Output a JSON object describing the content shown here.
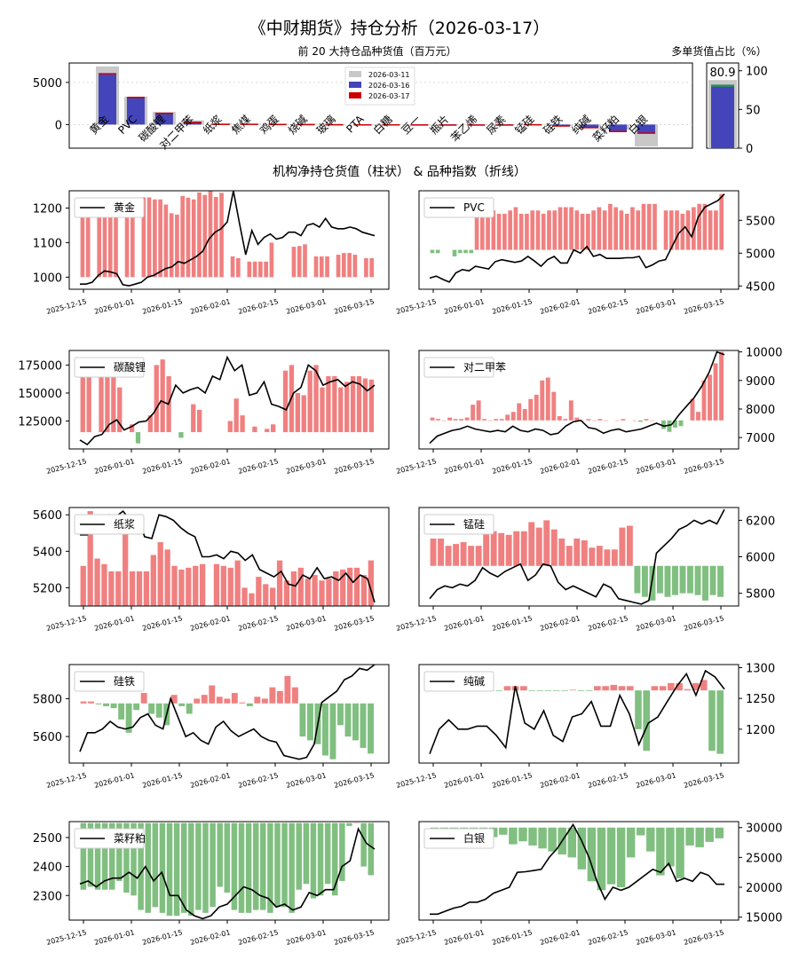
{
  "colors": {
    "gray": "#c8c8c8",
    "blue": "#4444bb",
    "red": "#cc0000",
    "pos": "#f08080",
    "neg": "#80bf80",
    "line": "#000000",
    "green_line": "#2e8b57"
  },
  "header": {
    "title": "《中财期货》持仓分析（2026-03-17）",
    "top_chart_label": "前 20 大持仓品种货值（百万元）",
    "ratio_label": "多单货值占比（%）",
    "section_label": "机构净持仓货值（柱状） & 品种指数（折线）"
  },
  "chart_data": [
    {
      "id": "top-bar",
      "type": "bar",
      "title": "前 20 大持仓品种货值（百万元）",
      "categories": [
        "黄金",
        "PVC",
        "碳酸锂",
        "对二甲苯",
        "纸浆",
        "焦煤",
        "鸡蛋",
        "烧碱",
        "玻璃",
        "PTA",
        "白糖",
        "豆一",
        "瓶片",
        "苯乙烯",
        "尿素",
        "锰硅",
        "硅铁",
        "纯碱",
        "菜籽粕",
        "白银"
      ],
      "series": [
        {
          "name": "2026-03-11",
          "values": [
            6900,
            3300,
            1500,
            500,
            120,
            100,
            80,
            80,
            60,
            50,
            40,
            30,
            30,
            20,
            20,
            -60,
            -150,
            -300,
            -600,
            -2600
          ]
        },
        {
          "name": "2026-03-16",
          "values": [
            6000,
            3200,
            1400,
            350,
            100,
            100,
            80,
            70,
            50,
            40,
            40,
            30,
            20,
            20,
            20,
            -100,
            -200,
            -400,
            -800,
            -1000
          ]
        },
        {
          "name": "2026-03-17",
          "values": [
            6100,
            3300,
            1400,
            300,
            100,
            100,
            80,
            70,
            50,
            40,
            40,
            30,
            20,
            20,
            20,
            -100,
            -250,
            -450,
            -900,
            -1100
          ]
        }
      ],
      "y_ticks": [
        "0",
        "5000"
      ],
      "ylim": [
        -2800,
        7300
      ]
    },
    {
      "id": "ratio-bar",
      "type": "bar",
      "title": "多单货值占比（%）",
      "series": [
        {
          "name": "2026-03-11",
          "value": 88
        },
        {
          "name": "2026-03-16",
          "value": 80.5
        },
        {
          "name": "2026-03-17",
          "value": 80.9
        }
      ],
      "label": "80.9",
      "y_ticks": [
        "0",
        "50",
        "100"
      ],
      "ylim": [
        0,
        110
      ]
    }
  ],
  "x_date_ticks": [
    "2025-12-15",
    "2026-01-01",
    "2026-01-15",
    "2026-02-01",
    "2026-02-15",
    "2026-03-01",
    "2026-03-15"
  ],
  "panels": [
    {
      "name": "黄金",
      "ylim": [
        965,
        1250
      ],
      "y_ticks": [
        1000,
        1100,
        1200
      ],
      "y_tick_labels": [
        "1000",
        "1100",
        "1200"
      ],
      "bars": [
        1213,
        1213,
        0,
        1213,
        1213,
        1205,
        1195,
        0,
        1180,
        1180,
        0,
        1231,
        1231,
        1225,
        1225,
        1210,
        1185,
        1181,
        1235,
        1230,
        1225,
        1245,
        1238,
        1250,
        1232,
        1244,
        0,
        1060,
        1055,
        0,
        1045,
        1045,
        1045,
        1045,
        1100,
        0,
        0,
        0,
        1088,
        1090,
        1095,
        0,
        1060,
        1060,
        1060,
        0,
        1065,
        1070,
        1070,
        1065,
        0,
        1055,
        1055
      ],
      "base": 1000,
      "line": [
        980,
        980,
        985,
        1005,
        1018,
        1015,
        1010,
        978,
        975,
        980,
        985,
        1000,
        1005,
        1015,
        1025,
        1030,
        1045,
        1040,
        1050,
        1060,
        1075,
        1110,
        1130,
        1140,
        1160,
        1250,
        1155,
        1065,
        1135,
        1095,
        1115,
        1125,
        1110,
        1115,
        1130,
        1130,
        1120,
        1150,
        1155,
        1145,
        1170,
        1145,
        1140,
        1140,
        1145,
        1140,
        1130,
        1125,
        1120
      ]
    },
    {
      "name": "PVC",
      "ylim": [
        4450,
        5950
      ],
      "y_ticks": [
        4500,
        5000,
        5500
      ],
      "y_tick_labels": [
        "4500",
        "5000",
        "5500"
      ],
      "bars": [
        5000,
        5000,
        0,
        0,
        4950,
        5000,
        5000,
        5000,
        5600,
        5600,
        5650,
        5650,
        5600,
        5600,
        5650,
        5700,
        5600,
        5600,
        5650,
        5650,
        5600,
        5650,
        5650,
        5700,
        5700,
        5700,
        5650,
        5600,
        5600,
        5650,
        5700,
        5650,
        5750,
        5700,
        5650,
        5600,
        5700,
        5650,
        5750,
        5750,
        5750,
        0,
        5650,
        5650,
        5650,
        5600,
        5650,
        5700,
        5750,
        5750,
        5650,
        5650,
        5900
      ],
      "base": 5050,
      "line": [
        4620,
        4650,
        4600,
        4560,
        4700,
        4750,
        4730,
        4800,
        4780,
        4760,
        4870,
        4900,
        4880,
        4860,
        4880,
        4950,
        4880,
        4800,
        4900,
        4950,
        4850,
        4850,
        5050,
        5000,
        5100,
        4950,
        4980,
        4920,
        4920,
        4920,
        4930,
        4930,
        4950,
        4780,
        4820,
        4880,
        4900,
        5100,
        5300,
        5400,
        5250,
        5550,
        5700,
        5750,
        5800,
        5900
      ]
    },
    {
      "name": "碳酸锂",
      "ylim": [
        100000,
        188000
      ],
      "y_ticks": [
        125000,
        150000,
        175000
      ],
      "y_tick_labels": [
        "125000",
        "150000",
        "175000"
      ],
      "bars": [
        170000,
        175000,
        0,
        178000,
        181000,
        165000,
        155000,
        0,
        122000,
        105000,
        0,
        130000,
        175000,
        180000,
        165000,
        0,
        110000,
        0,
        140000,
        135000,
        0,
        0,
        0,
        0,
        125000,
        145000,
        130000,
        0,
        120000,
        0,
        118000,
        122000,
        0,
        170000,
        175000,
        150000,
        148000,
        170000,
        175000,
        155000,
        165000,
        165000,
        155000,
        160000,
        165000,
        165000,
        163000,
        162000
      ],
      "base": 115000,
      "line": [
        108000,
        104000,
        111000,
        113000,
        122000,
        126000,
        117000,
        120000,
        124000,
        125000,
        132000,
        143000,
        140000,
        157000,
        150000,
        153000,
        155000,
        150000,
        165000,
        162000,
        182000,
        170000,
        175000,
        148000,
        150000,
        160000,
        140000,
        138000,
        135000,
        150000,
        155000,
        175000,
        170000,
        157000,
        160000,
        162000,
        156000,
        160000,
        158000,
        152000,
        157000
      ]
    },
    {
      "name": "对二甲苯",
      "ylim": [
        6600,
        10050
      ],
      "y_ticks": [
        7000,
        8000,
        9000,
        10000
      ],
      "y_tick_labels": [
        "7000",
        "8000",
        "9000",
        "10000"
      ],
      "bars": [
        7700,
        7650,
        7600,
        7700,
        7650,
        7650,
        7700,
        8150,
        8300,
        7650,
        7600,
        7650,
        7650,
        7800,
        7900,
        8200,
        8000,
        8350,
        8500,
        9000,
        9100,
        8600,
        7750,
        7650,
        8300,
        7700,
        7600,
        7650,
        7600,
        7650,
        7600,
        0,
        7600,
        7650,
        0,
        7600,
        7550,
        7650,
        7600,
        0,
        7300,
        7200,
        7350,
        7400,
        0,
        8350,
        7900,
        9000,
        9200,
        9600,
        10000
      ],
      "base": 7600,
      "line": [
        6800,
        7050,
        7150,
        7250,
        7300,
        7400,
        7300,
        7250,
        7200,
        7250,
        7200,
        7400,
        7250,
        7200,
        7300,
        7250,
        7100,
        7150,
        7400,
        7550,
        7600,
        7350,
        7300,
        7150,
        7250,
        7300,
        7200,
        7250,
        7300,
        7400,
        7500,
        7400,
        7450,
        7800,
        8100,
        8400,
        8800,
        9300,
        10000,
        9900
      ]
    },
    {
      "name": "纸浆",
      "ylim": [
        5100,
        5640
      ],
      "y_ticks": [
        5200,
        5400,
        5600
      ],
      "y_tick_labels": [
        "5200",
        "5400",
        "5600"
      ],
      "bars": [
        5320,
        5620,
        5360,
        5330,
        5290,
        5290,
        5560,
        5290,
        5290,
        5290,
        5380,
        5450,
        5410,
        5320,
        5300,
        5310,
        5320,
        5330,
        0,
        5330,
        5320,
        5310,
        5350,
        5200,
        5170,
        5260,
        5220,
        5200,
        5350,
        5240,
        5290,
        5310,
        5250,
        5270,
        5240,
        5250,
        5290,
        5300,
        5310,
        5310,
        5270,
        5350
      ],
      "base": 5100,
      "line": [
        5490,
        5490,
        5520,
        5560,
        5600,
        5590,
        5620,
        5570,
        5590,
        5480,
        5470,
        5600,
        5590,
        5570,
        5530,
        5500,
        5480,
        5370,
        5370,
        5380,
        5360,
        5400,
        5390,
        5350,
        5380,
        5300,
        5280,
        5260,
        5290,
        5220,
        5210,
        5270,
        5250,
        5310,
        5250,
        5260,
        5240,
        5280,
        5230,
        5270,
        5250,
        5120
      ]
    },
    {
      "name": "锰硅",
      "ylim": [
        5730,
        6270
      ],
      "y_ticks": [
        5800,
        6000,
        6200
      ],
      "y_tick_labels": [
        "5800",
        "6000",
        "6200"
      ],
      "bars": [
        6100,
        6100,
        6060,
        6070,
        6080,
        6060,
        6060,
        6140,
        6140,
        6130,
        6120,
        6140,
        6140,
        6190,
        6160,
        6200,
        6150,
        6100,
        6060,
        6100,
        6090,
        6050,
        6060,
        6040,
        6040,
        6160,
        6170,
        5800,
        5780,
        5760,
        5800,
        5780,
        5790,
        5800,
        5800,
        5790,
        5760,
        5790,
        5780
      ],
      "base": 5950,
      "line": [
        5770,
        5820,
        5840,
        5830,
        5850,
        5840,
        5870,
        5940,
        5910,
        5890,
        5920,
        5940,
        5960,
        5870,
        5900,
        5960,
        5950,
        5860,
        5820,
        5840,
        5820,
        5800,
        5780,
        5850,
        5830,
        5770,
        5760,
        5750,
        5740,
        5760,
        6020,
        6060,
        6100,
        6150,
        6170,
        6200,
        6180,
        6200,
        6180,
        6260
      ]
    },
    {
      "name": "硅铁",
      "ylim": [
        5460,
        5980
      ],
      "y_ticks": [
        5600,
        5800
      ],
      "y_tick_labels": [
        "5600",
        "5800"
      ],
      "bars": [
        5785,
        5785,
        5770,
        5760,
        5750,
        5690,
        5620,
        5740,
        5830,
        5720,
        5700,
        5660,
        5820,
        5760,
        5720,
        5800,
        5820,
        5870,
        5810,
        5800,
        5830,
        5780,
        5760,
        5810,
        5800,
        5860,
        5840,
        5920,
        5860,
        5600,
        5580,
        5560,
        5500,
        5480,
        5660,
        5600,
        5580,
        5540,
        5510
      ],
      "base": 5775,
      "line": [
        5520,
        5620,
        5620,
        5640,
        5680,
        5650,
        5640,
        5650,
        5700,
        5720,
        5660,
        5640,
        5800,
        5700,
        5600,
        5620,
        5580,
        5560,
        5650,
        5680,
        5630,
        5600,
        5620,
        5640,
        5600,
        5580,
        5570,
        5500,
        5490,
        5480,
        5490,
        5560,
        5780,
        5810,
        5840,
        5900,
        5920,
        5960,
        5950,
        5980
      ]
    },
    {
      "name": "纯碱",
      "ylim": [
        1145,
        1305
      ],
      "y_ticks": [
        1200,
        1250,
        1300
      ],
      "y_tick_labels": [
        "1200",
        "1250",
        "1300"
      ],
      "bars": [
        1262,
        1262,
        1262,
        1262,
        1262,
        1262,
        1262,
        1262,
        1262,
        1270,
        1270,
        1270,
        1262,
        1262,
        1262,
        1262,
        1262,
        1264,
        1262,
        1262,
        1270,
        1270,
        1272,
        1270,
        1270,
        1200,
        1165,
        1270,
        1270,
        1275,
        1275,
        1265,
        1275,
        1280,
        1165,
        1160
      ],
      "base": 1263,
      "line": [
        1160,
        1200,
        1215,
        1200,
        1200,
        1205,
        1205,
        1190,
        1170,
        1270,
        1210,
        1200,
        1230,
        1190,
        1180,
        1220,
        1225,
        1245,
        1205,
        1205,
        1255,
        1225,
        1175,
        1210,
        1220,
        1245,
        1270,
        1290,
        1255,
        1295,
        1285,
        1265
      ]
    },
    {
      "name": "菜籽粕",
      "ylim": [
        2215,
        2555
      ],
      "y_ticks": [
        2300,
        2400,
        2500
      ],
      "y_tick_labels": [
        "2300",
        "2400",
        "2500"
      ],
      "bars": [
        2320,
        2330,
        2320,
        2320,
        2320,
        2350,
        2310,
        2300,
        2250,
        2240,
        2260,
        2240,
        2230,
        2230,
        2240,
        2230,
        2250,
        2240,
        2260,
        2330,
        2310,
        2250,
        2240,
        2240,
        2250,
        2250,
        2240,
        2260,
        2260,
        2240,
        2320,
        2340,
        2290,
        2300,
        2340,
        2300,
        2350,
        2540,
        2550,
        2400,
        2370
      ],
      "base": 2550,
      "line": [
        2340,
        2350,
        2330,
        2350,
        2360,
        2360,
        2380,
        2360,
        2400,
        2350,
        2380,
        2300,
        2300,
        2250,
        2230,
        2220,
        2230,
        2260,
        2270,
        2300,
        2330,
        2320,
        2300,
        2290,
        2260,
        2270,
        2250,
        2260,
        2310,
        2300,
        2320,
        2320,
        2400,
        2420,
        2530,
        2480,
        2460
      ]
    },
    {
      "name": "白银",
      "ylim": [
        14500,
        31000
      ],
      "y_ticks": [
        15000,
        20000,
        25000,
        30000
      ],
      "y_tick_labels": [
        "15000",
        "20000",
        "25000",
        "30000"
      ],
      "bars": [
        28600,
        28600,
        28600,
        28600,
        28600,
        29000,
        28400,
        28800,
        27200,
        27700,
        27000,
        26500,
        26000,
        25500,
        25000,
        23000,
        21000,
        19500,
        20500,
        20000,
        25000,
        28700,
        26000,
        22000,
        23500,
        21500,
        27000,
        26700,
        27600,
        28200
      ],
      "base": 30000,
      "line": [
        15500,
        15500,
        16000,
        16500,
        16800,
        17500,
        17500,
        18000,
        19000,
        19500,
        20000,
        22500,
        22600,
        22800,
        23000,
        25000,
        26500,
        28500,
        30500,
        28000,
        25000,
        21000,
        18000,
        20000,
        19500,
        20000,
        21000,
        22000,
        23000,
        22500,
        24000,
        21000,
        21500,
        21000,
        22500,
        22000,
        20500,
        20500
      ]
    }
  ]
}
